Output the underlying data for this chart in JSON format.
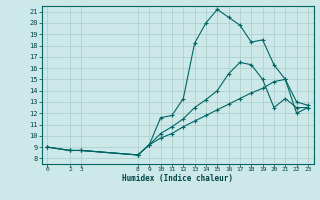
{
  "title": "",
  "xlabel": "Humidex (Indice chaleur)",
  "bg_color": "#cce8e8",
  "grid_color": "#aacccc",
  "line_color": "#006666",
  "xlim": [
    -0.5,
    23.5
  ],
  "ylim": [
    7.5,
    21.5
  ],
  "xticks": [
    0,
    2,
    3,
    8,
    9,
    10,
    11,
    12,
    13,
    14,
    15,
    16,
    17,
    18,
    19,
    20,
    21,
    22,
    23
  ],
  "yticks": [
    8,
    9,
    10,
    11,
    12,
    13,
    14,
    15,
    16,
    17,
    18,
    19,
    20,
    21
  ],
  "line1_x": [
    0,
    2,
    3,
    8,
    9,
    10,
    11,
    12,
    13,
    14,
    15,
    16,
    17,
    18,
    19,
    20,
    21,
    22,
    23
  ],
  "line1_y": [
    9.0,
    8.7,
    8.7,
    8.3,
    9.2,
    11.6,
    11.8,
    13.3,
    18.2,
    20.0,
    21.2,
    20.5,
    19.8,
    18.3,
    18.5,
    16.3,
    15.0,
    13.0,
    12.7
  ],
  "line2_x": [
    0,
    2,
    3,
    8,
    9,
    10,
    11,
    12,
    13,
    14,
    15,
    16,
    17,
    18,
    19,
    20,
    21,
    22,
    23
  ],
  "line2_y": [
    9.0,
    8.7,
    8.7,
    8.3,
    9.2,
    10.2,
    10.8,
    11.5,
    12.5,
    13.2,
    14.0,
    15.5,
    16.5,
    16.3,
    15.0,
    12.5,
    13.3,
    12.5,
    12.5
  ],
  "line3_x": [
    0,
    2,
    3,
    8,
    9,
    10,
    11,
    12,
    13,
    14,
    15,
    16,
    17,
    18,
    19,
    20,
    21,
    22,
    23
  ],
  "line3_y": [
    9.0,
    8.7,
    8.7,
    8.3,
    9.2,
    9.8,
    10.2,
    10.8,
    11.3,
    11.8,
    12.3,
    12.8,
    13.3,
    13.8,
    14.2,
    14.8,
    15.0,
    12.0,
    12.5
  ]
}
